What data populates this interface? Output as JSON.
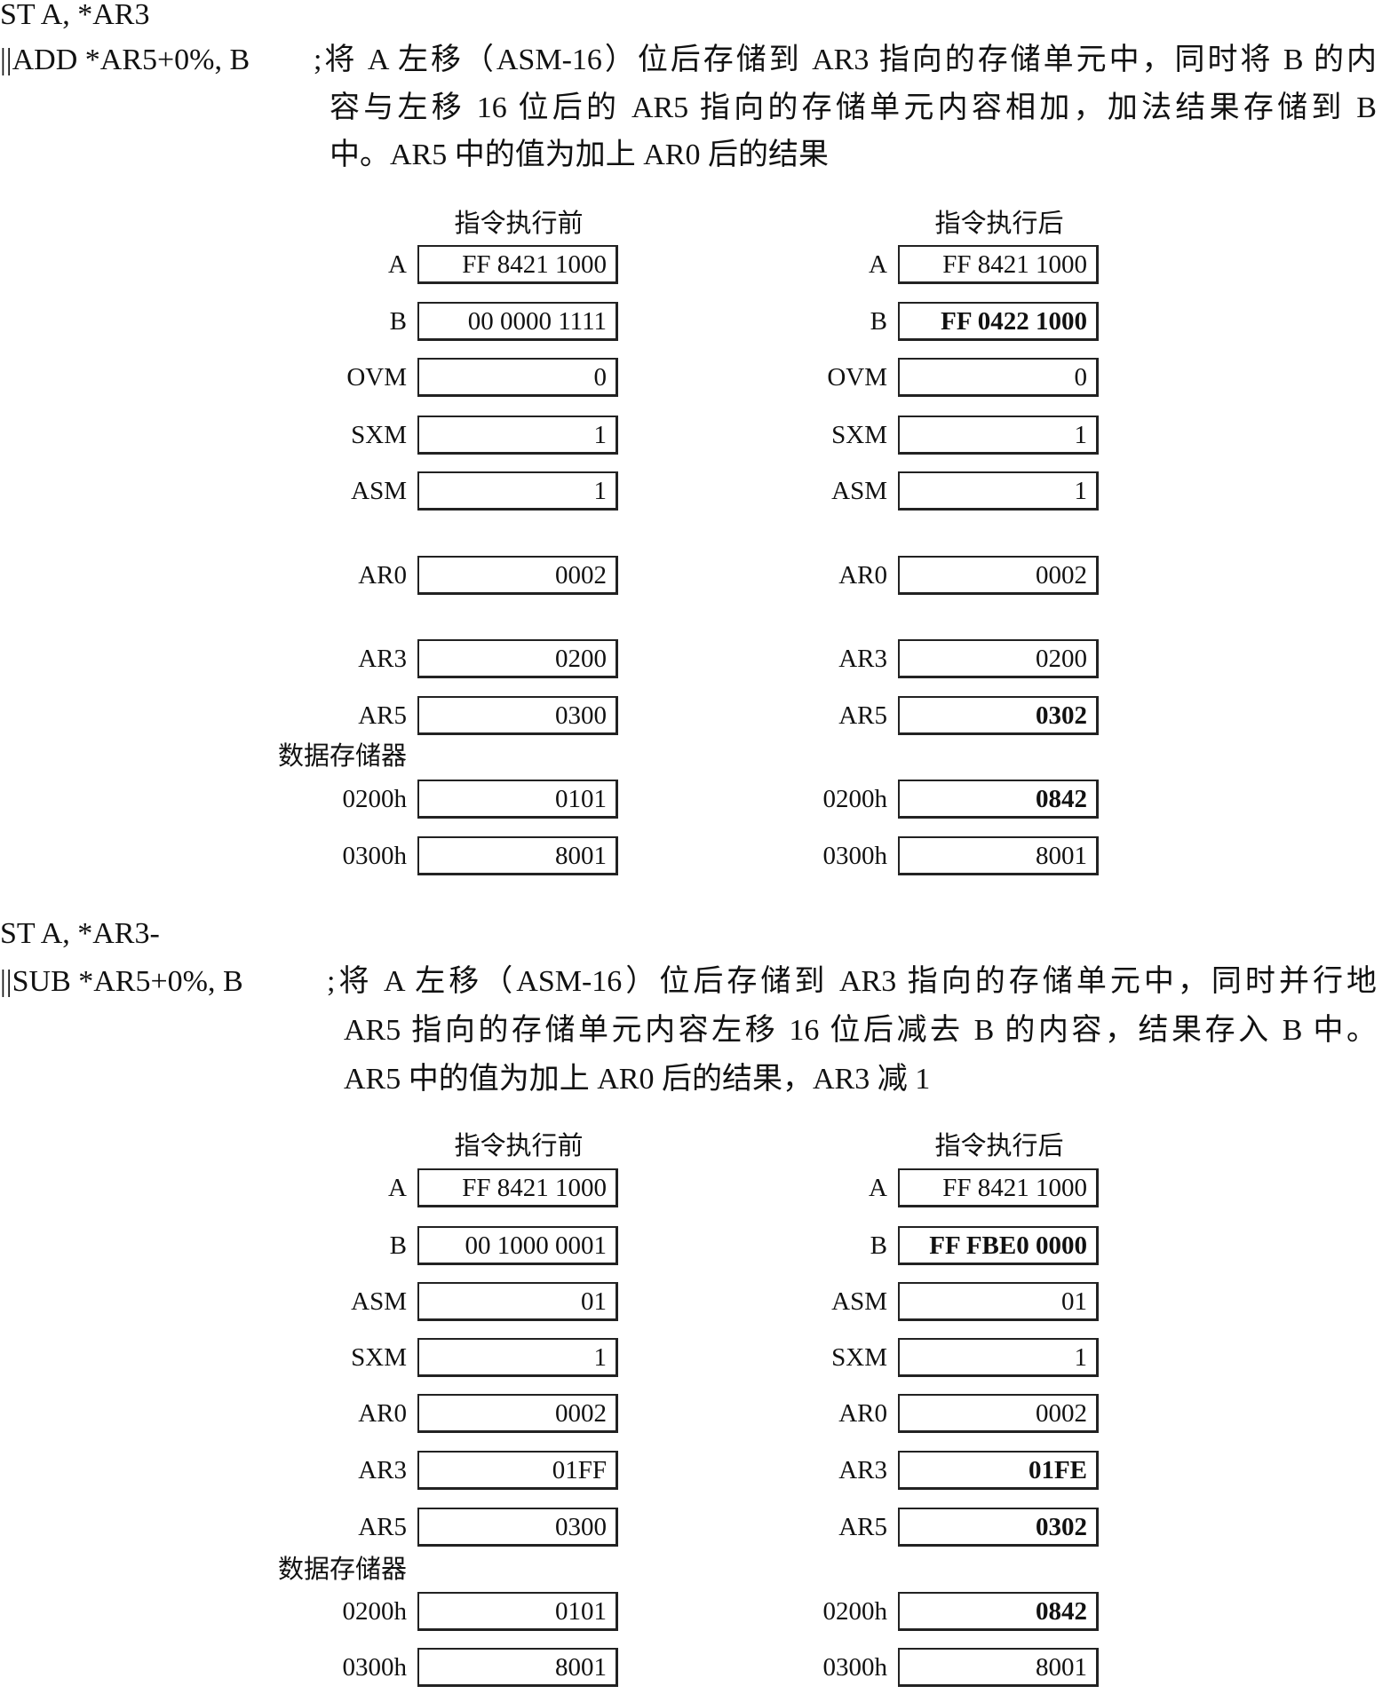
{
  "sections": [
    {
      "instr1": "ST A, *AR3",
      "instr2": "||ADD  *AR5+0%,  B",
      "comment": [
        ";将 A 左移（ASM-16）位后存储到 AR3 指向的存储单元中，同时将 B 的内",
        "容与左移 16 位后的 AR5 指向的存储单元内容相加，加法结果存储到 B",
        "中。AR5 中的值为加上 AR0 后的结果"
      ],
      "before_header": "指令执行前",
      "after_header": "指令执行后",
      "memory_label": "数据存储器",
      "registers": [
        {
          "name": "A",
          "before": "FF 8421 1000",
          "after": "FF 8421 1000",
          "changed": false
        },
        {
          "name": "B",
          "before": "00 0000 1111",
          "after": "FF 0422 1000",
          "changed": true
        },
        {
          "name": "OVM",
          "before": "0",
          "after": "0",
          "changed": false
        },
        {
          "name": "SXM",
          "before": "1",
          "after": "1",
          "changed": false
        },
        {
          "name": "ASM",
          "before": "1",
          "after": "1",
          "changed": false
        },
        {
          "name": "AR0",
          "before": "0002",
          "after": "0002",
          "changed": false
        },
        {
          "name": "AR3",
          "before": "0200",
          "after": "0200",
          "changed": false
        },
        {
          "name": "AR5",
          "before": "0300",
          "after": "0302",
          "changed": true
        }
      ],
      "memory": [
        {
          "name": "0200h",
          "before": "0101",
          "after": "0842",
          "changed": true
        },
        {
          "name": "0300h",
          "before": "8001",
          "after": "8001",
          "changed": false
        }
      ]
    },
    {
      "instr1": "ST A, *AR3-",
      "instr2": "||SUB  *AR5+0%,  B",
      "comment": [
        ";将 A 左移（ASM-16）位后存储到 AR3 指向的存储单元中，同时并行地",
        "AR5 指向的存储单元内容左移 16 位后减去 B 的内容，结果存入 B 中。",
        "AR5 中的值为加上 AR0 后的结果，AR3 减 1"
      ],
      "before_header": "指令执行前",
      "after_header": "指令执行后",
      "memory_label": "数据存储器",
      "registers": [
        {
          "name": "A",
          "before": "FF 8421 1000",
          "after": "FF 8421 1000",
          "changed": false
        },
        {
          "name": "B",
          "before": "00 1000 0001",
          "after": "FF FBE0 0000",
          "changed": true
        },
        {
          "name": "ASM",
          "before": "01",
          "after": "01",
          "changed": false
        },
        {
          "name": "SXM",
          "before": "1",
          "after": "1",
          "changed": false
        },
        {
          "name": "AR0",
          "before": "0002",
          "after": "0002",
          "changed": false
        },
        {
          "name": "AR3",
          "before": "01FF",
          "after": "01FE",
          "changed": true
        },
        {
          "name": "AR5",
          "before": "0300",
          "after": "0302",
          "changed": true
        }
      ],
      "memory": [
        {
          "name": "0200h",
          "before": "0101",
          "after": "0842",
          "changed": true
        },
        {
          "name": "0300h",
          "before": "8001",
          "after": "8001",
          "changed": false
        }
      ]
    }
  ]
}
